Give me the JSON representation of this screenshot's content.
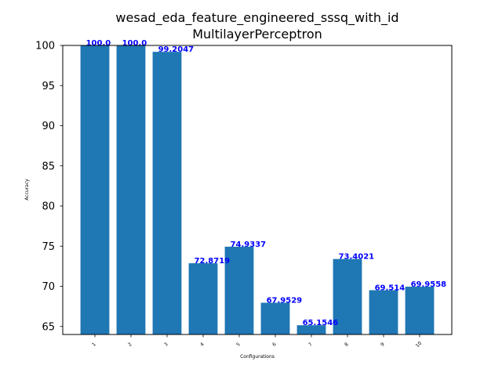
{
  "chart_data": {
    "type": "bar",
    "title": "wesad_eda_feature_engineered_sssq_with_id",
    "subtitle": "MultilayerPerceptron",
    "xlabel": "Configurations",
    "ylabel": "Accuracy",
    "categories": [
      "1",
      "2",
      "3",
      "4",
      "5",
      "6",
      "7",
      "8",
      "9",
      "10"
    ],
    "values": [
      100.0,
      100.0,
      99.2047,
      72.8719,
      74.9337,
      67.9529,
      65.1546,
      73.4021,
      69.514,
      69.9558
    ],
    "value_labels": [
      "100.0",
      "100.0",
      "99.2047",
      "72.8719",
      "74.9337",
      "67.9529",
      "65.1546",
      "73.4021",
      "69.514",
      "69.9558"
    ],
    "ylim": [
      64,
      100
    ],
    "yticks": [
      65,
      70,
      75,
      80,
      85,
      90,
      95,
      100
    ],
    "grid": false,
    "colors": {
      "bar": "#1f77b4",
      "label": "#0000ff"
    }
  }
}
